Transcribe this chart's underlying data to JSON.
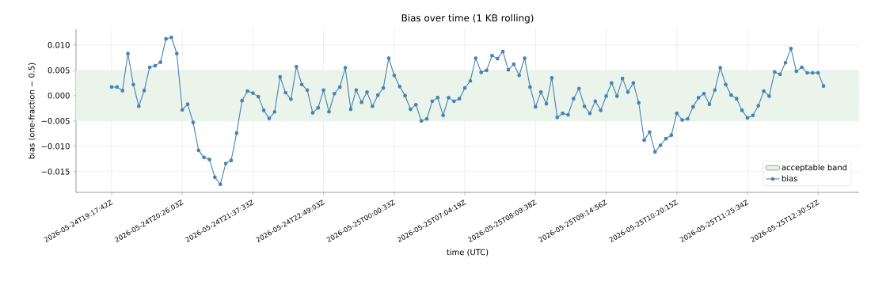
{
  "chart_data": {
    "type": "line",
    "title": "Bias over time (1 KB rolling)",
    "xlabel": "time (UTC)",
    "ylabel": "bias (one-fraction − 0.5)",
    "categories": [
      "2026-05-24T19:17:42Z",
      null,
      null,
      null,
      null,
      null,
      null,
      null,
      null,
      null,
      null,
      null,
      null,
      "2026-05-24T20:26:03Z",
      null,
      null,
      null,
      null,
      null,
      null,
      null,
      null,
      null,
      null,
      null,
      null,
      "2026-05-24T21:37:33Z",
      null,
      null,
      null,
      null,
      null,
      null,
      null,
      null,
      null,
      null,
      null,
      null,
      "2026-05-24T22:49:03Z",
      null,
      null,
      null,
      null,
      null,
      null,
      null,
      null,
      null,
      null,
      null,
      null,
      "2026-05-25T00:00:33Z",
      null,
      null,
      null,
      null,
      null,
      null,
      null,
      null,
      null,
      null,
      null,
      null,
      "2026-05-25T07:04:19Z",
      null,
      null,
      null,
      null,
      null,
      null,
      null,
      null,
      null,
      null,
      null,
      null,
      "2026-05-25T08:09:38Z",
      null,
      null,
      null,
      null,
      null,
      null,
      null,
      null,
      null,
      null,
      null,
      null,
      "2026-05-25T09:14:56Z",
      null,
      null,
      null,
      null,
      null,
      null,
      null,
      null,
      null,
      null,
      null,
      null,
      "2026-05-25T10:20:15Z",
      null,
      null,
      null,
      null,
      null,
      null,
      null,
      null,
      null,
      null,
      null,
      null,
      "2026-05-25T11:25:34Z",
      null,
      null,
      null,
      null,
      null,
      null,
      null,
      null,
      null,
      null,
      null,
      null,
      "2026-05-25T12:30:52Z",
      null
    ],
    "series": [
      {
        "name": "bias",
        "color": "#4682b4",
        "values": [
          0.0017,
          0.0017,
          0.001,
          0.0083,
          0.0022,
          -0.0021,
          0.001,
          0.0056,
          0.0059,
          0.0066,
          0.0112,
          0.0115,
          0.0083,
          -0.0028,
          -0.0017,
          -0.0053,
          -0.0108,
          -0.0122,
          -0.0126,
          -0.0161,
          -0.0175,
          -0.0134,
          -0.0128,
          -0.0074,
          -0.001,
          0.0009,
          0.0005,
          -0.0002,
          -0.0029,
          -0.0045,
          -0.0032,
          0.0037,
          0.0006,
          -0.0007,
          0.0057,
          0.0022,
          0.0011,
          -0.0034,
          -0.0024,
          0.0011,
          -0.0032,
          0.0004,
          0.0017,
          0.0055,
          -0.0027,
          0.0011,
          -0.0013,
          0.0007,
          -0.0021,
          0.0001,
          0.0015,
          0.0074,
          0.004,
          0.0018,
          0.0,
          -0.0027,
          -0.0018,
          -0.005,
          -0.0046,
          -0.0011,
          -0.0004,
          -0.0039,
          -0.0004,
          -0.0011,
          -0.0006,
          0.0015,
          0.0029,
          0.0074,
          0.0046,
          0.005,
          0.0079,
          0.0073,
          0.0087,
          0.0051,
          0.0062,
          0.004,
          0.0074,
          0.0017,
          -0.0022,
          0.0007,
          -0.0016,
          0.0035,
          -0.0043,
          -0.0035,
          -0.0038,
          -0.0006,
          0.0014,
          -0.0021,
          -0.0035,
          -0.0011,
          -0.0029,
          -0.0001,
          0.0025,
          -0.0001,
          0.0034,
          0.0007,
          0.0025,
          -0.0014,
          -0.0088,
          -0.0072,
          -0.0111,
          -0.0098,
          -0.0085,
          -0.0078,
          -0.0035,
          -0.0048,
          -0.0046,
          -0.0022,
          -0.0004,
          0.0004,
          -0.0017,
          0.0011,
          0.0055,
          0.0022,
          0.0001,
          -0.0006,
          -0.0029,
          -0.0044,
          -0.0039,
          -0.002,
          0.0009,
          -0.0001,
          0.0047,
          0.0042,
          0.0065,
          0.0093,
          0.0048,
          0.0056,
          0.0045,
          0.0045,
          0.0045,
          0.0019
        ]
      }
    ],
    "ylim": [
      -0.0191,
      0.0131
    ],
    "yticks": [
      {
        "value": -0.015,
        "label": "−0.015"
      },
      {
        "value": -0.01,
        "label": "−0.010"
      },
      {
        "value": -0.005,
        "label": "−0.005"
      },
      {
        "value": 0.0,
        "label": "0.000"
      },
      {
        "value": 0.005,
        "label": "0.005"
      },
      {
        "value": 0.01,
        "label": "0.010"
      }
    ],
    "bands": [
      {
        "axis": "y",
        "from": -0.005,
        "to": 0.005,
        "label": "acceptable band",
        "color": "#eaf4ea"
      }
    ],
    "grid": true,
    "legend": "bottom right",
    "marker": "circle",
    "line_style": "solid"
  }
}
